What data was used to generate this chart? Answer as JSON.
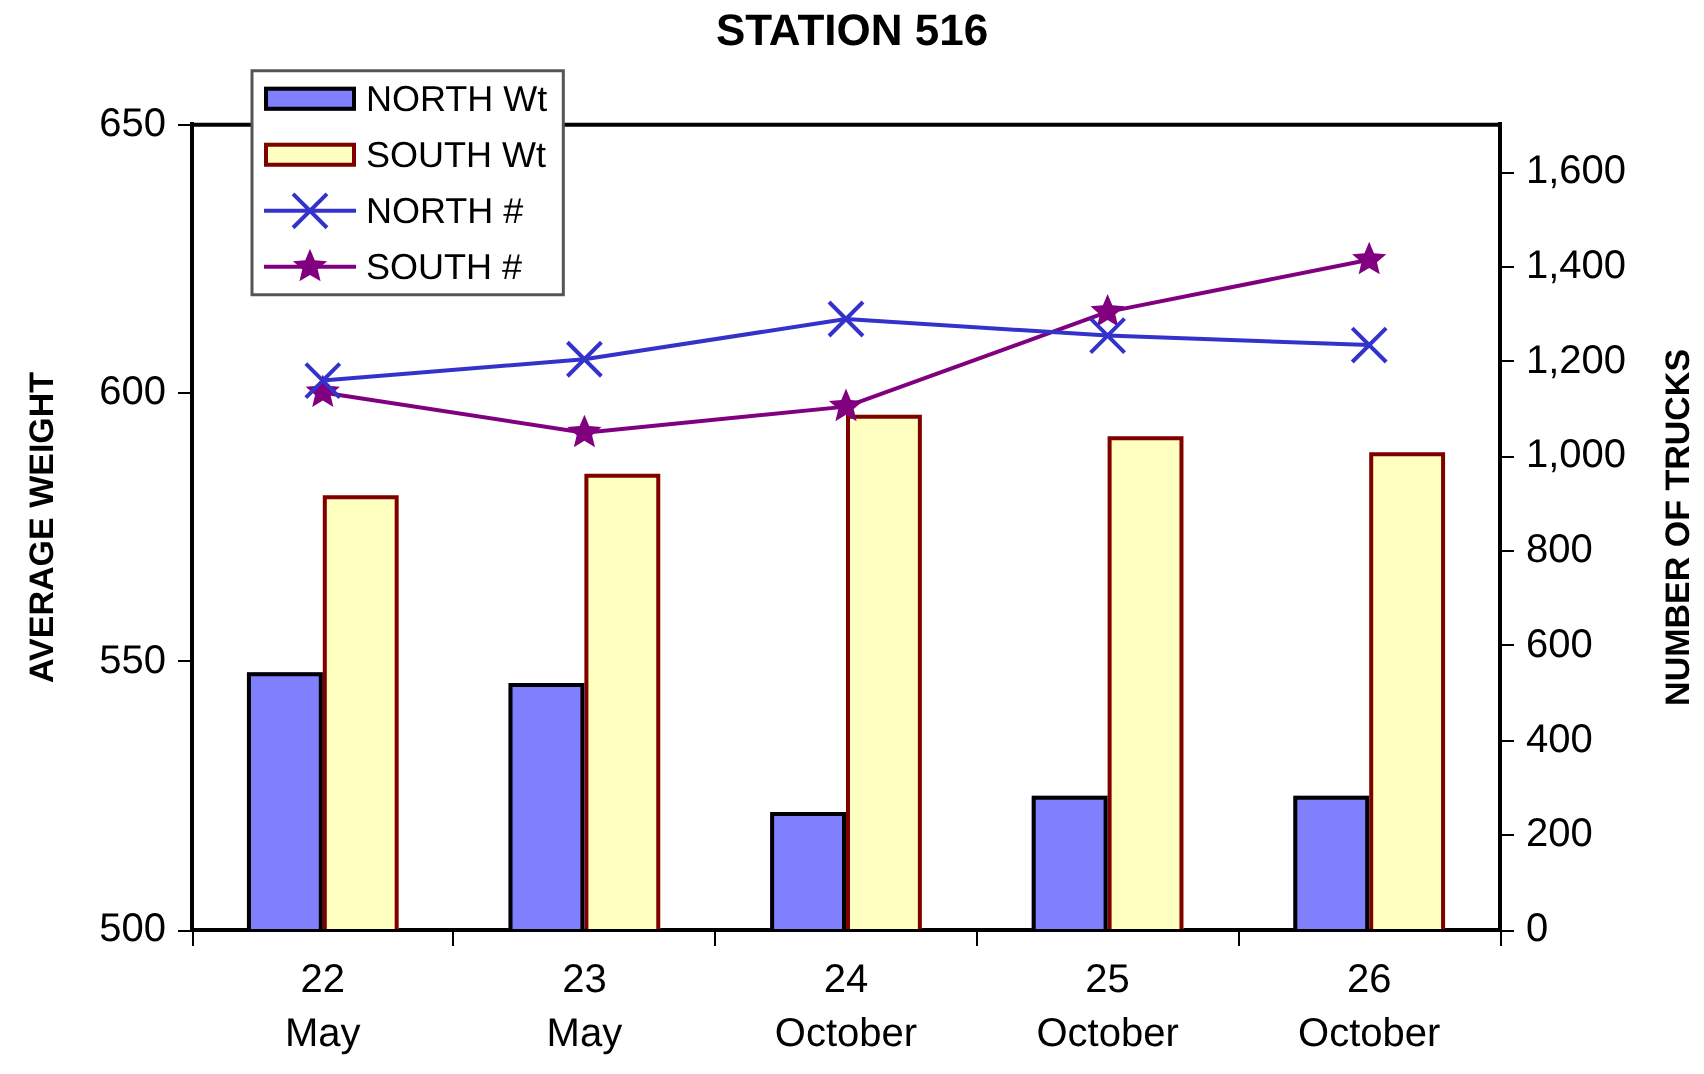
{
  "chart_data": {
    "type": "bar",
    "title": "STATION 516",
    "ylabel": "AVERAGE WEIGHT",
    "y2label": "NUMBER OF TRUCKS",
    "categories": [
      "22 May",
      "23 May",
      "24 October",
      "25 October",
      "26 October"
    ],
    "series": [
      {
        "name": "NORTH Wt",
        "color": "#8080ff",
        "values": [
          548,
          546,
          522,
          525,
          525
        ]
      },
      {
        "name": "SOUTH Wt",
        "color": "#ffffc0",
        "values": [
          581,
          585,
          596,
          592,
          589
        ]
      },
      {
        "name": "NORTH #",
        "type": "line",
        "axis": "y2",
        "color": "#3333cc",
        "marker": "cross",
        "values": [
          1160,
          1205,
          1290,
          1255,
          1235
        ]
      },
      {
        "name": "SOUTH #",
        "type": "line",
        "axis": "y2",
        "color": "#800080",
        "marker": "star",
        "values": [
          1135,
          1050,
          1105,
          1305,
          1415
        ]
      }
    ],
    "ylim": [
      500,
      650
    ],
    "yticks": [
      500,
      550,
      600,
      650
    ],
    "y2lim": [
      0,
      1700
    ],
    "y2ticks": [
      0,
      200,
      400,
      600,
      800,
      {
        "value": 1000,
        "label": "1,000"
      },
      {
        "value": 1200,
        "label": "1,200"
      },
      {
        "value": 1400,
        "label": "1,400"
      },
      {
        "value": 1600,
        "label": "1,600"
      }
    ],
    "grid": false,
    "legend": "top left"
  }
}
